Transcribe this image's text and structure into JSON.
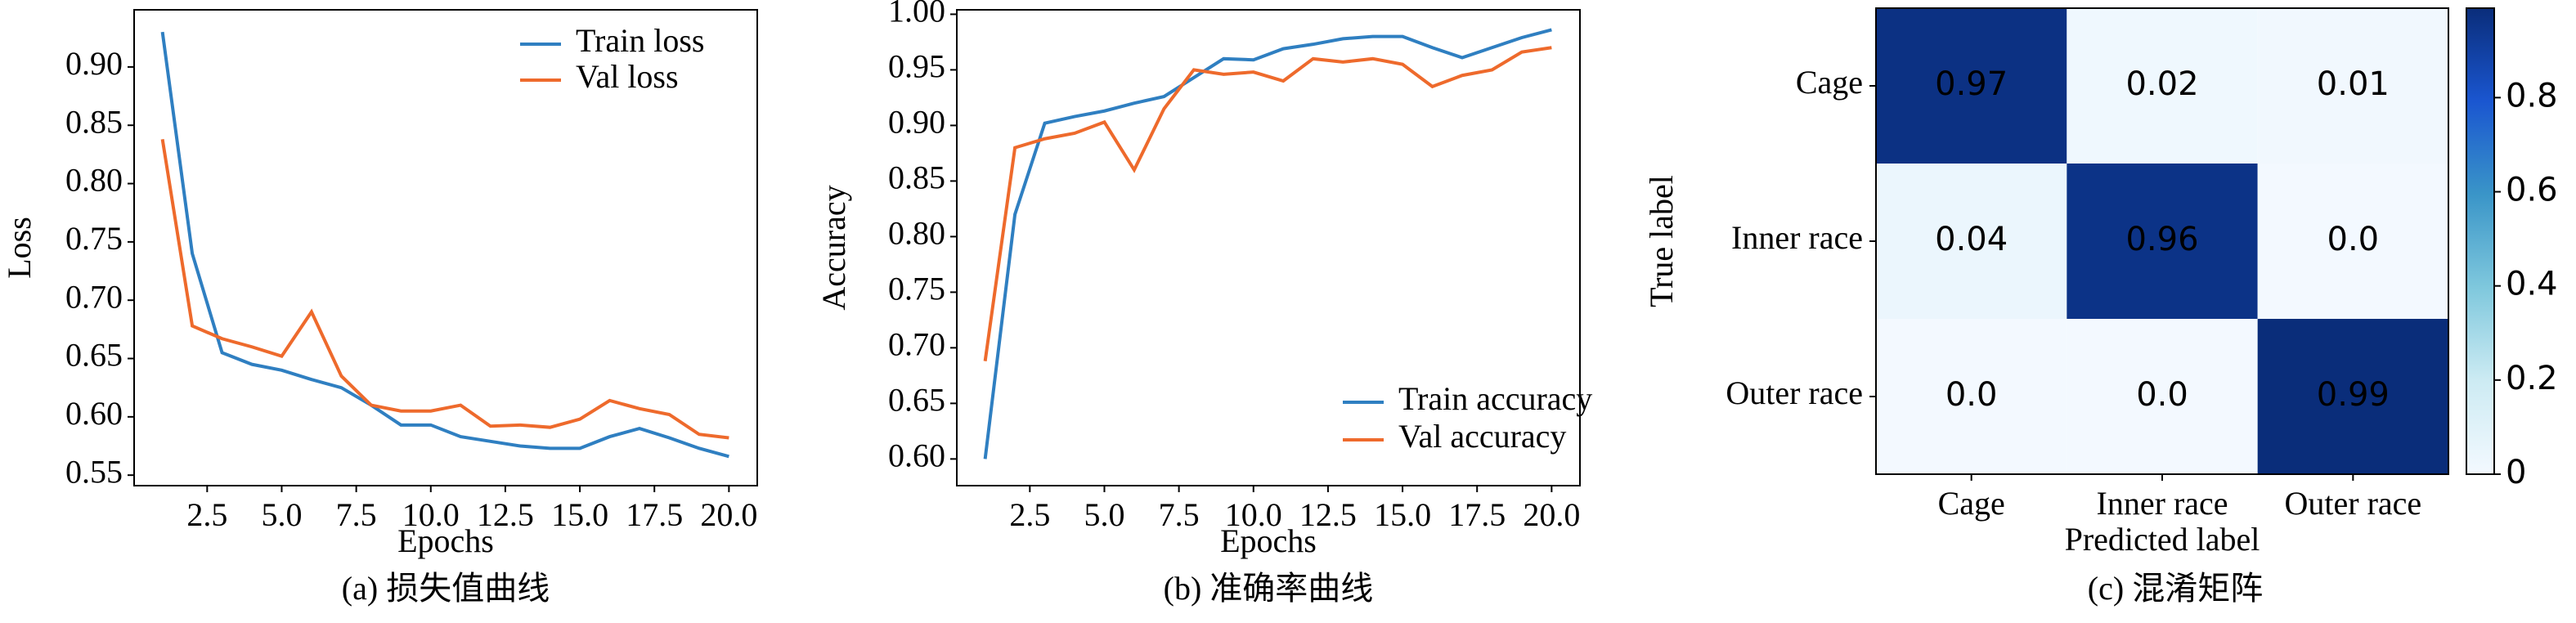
{
  "chart_data": [
    {
      "type": "line",
      "xlabel": "Epochs",
      "ylabel": "Loss",
      "caption": "(a) 损失值曲线",
      "x": [
        1,
        2,
        3,
        4,
        5,
        6,
        7,
        8,
        9,
        10,
        11,
        12,
        13,
        14,
        15,
        16,
        17,
        18,
        19,
        20
      ],
      "series": [
        {
          "name": "Train loss",
          "color": "#2f7fc1",
          "values": [
            0.93,
            0.74,
            0.655,
            0.645,
            0.64,
            0.632,
            0.625,
            0.61,
            0.593,
            0.593,
            0.583,
            0.579,
            0.575,
            0.573,
            0.573,
            0.583,
            0.59,
            0.582,
            0.573,
            0.566
          ]
        },
        {
          "name": "Val loss",
          "color": "#ee6a2c",
          "values": [
            0.838,
            0.678,
            0.667,
            0.66,
            0.652,
            0.69,
            0.635,
            0.61,
            0.605,
            0.605,
            0.61,
            0.592,
            0.593,
            0.591,
            0.598,
            0.614,
            0.607,
            0.602,
            0.585,
            0.582
          ]
        }
      ],
      "xlim": [
        0.05,
        20.95
      ],
      "xticks": [
        2.5,
        {
          "value": 5,
          "label": "5.0"
        },
        7.5,
        {
          "value": 10,
          "label": "10.0"
        },
        12.5,
        {
          "value": 15,
          "label": "15.0"
        },
        17.5,
        {
          "value": 20,
          "label": "20.0"
        }
      ],
      "ylim": [
        0.541,
        0.949
      ],
      "yticks": [
        0.55,
        {
          "value": 0.6,
          "label": "0.60"
        },
        0.65,
        {
          "value": 0.7,
          "label": "0.70"
        },
        0.75,
        {
          "value": 0.8,
          "label": "0.80"
        },
        0.85,
        {
          "value": 0.9,
          "label": "0.90"
        }
      ],
      "legend": "upper right"
    },
    {
      "type": "line",
      "xlabel": "Epochs",
      "ylabel": "Accuracy",
      "caption": "(b) 准确率曲线",
      "x": [
        1,
        2,
        3,
        4,
        5,
        6,
        7,
        8,
        9,
        10,
        11,
        12,
        13,
        14,
        15,
        16,
        17,
        18,
        19,
        20
      ],
      "series": [
        {
          "name": "Train accuracy",
          "color": "#2f7fc1",
          "values": [
            0.6,
            0.82,
            0.902,
            0.908,
            0.913,
            0.92,
            0.926,
            0.943,
            0.96,
            0.959,
            0.969,
            0.973,
            0.978,
            0.98,
            0.98,
            0.97,
            0.961,
            0.97,
            0.979,
            0.986
          ]
        },
        {
          "name": "Val accuracy",
          "color": "#ee6a2c",
          "values": [
            0.688,
            0.88,
            0.888,
            0.893,
            0.903,
            0.86,
            0.915,
            0.95,
            0.946,
            0.948,
            0.94,
            0.96,
            0.957,
            0.96,
            0.955,
            0.935,
            0.945,
            0.95,
            0.966,
            0.97
          ]
        }
      ],
      "xlim": [
        0.05,
        20.95
      ],
      "xticks": [
        2.5,
        {
          "value": 5,
          "label": "5.0"
        },
        7.5,
        {
          "value": 10,
          "label": "10.0"
        },
        12.5,
        {
          "value": 15,
          "label": "15.0"
        },
        17.5,
        {
          "value": 20,
          "label": "20.0"
        }
      ],
      "ylim": [
        0.576,
        1.004
      ],
      "yticks": [
        {
          "value": 0.6,
          "label": "0.60"
        },
        0.65,
        {
          "value": 0.7,
          "label": "0.70"
        },
        0.75,
        {
          "value": 0.8,
          "label": "0.80"
        },
        0.85,
        {
          "value": 0.9,
          "label": "0.90"
        },
        0.95,
        {
          "value": 1,
          "label": "1.00"
        }
      ],
      "legend": "lower right"
    },
    {
      "type": "heatmap",
      "xlabel": "Predicted label",
      "ylabel": "True label",
      "caption": "(c) 混淆矩阵",
      "xcategories": [
        "Cage",
        "Inner race",
        "Outer race"
      ],
      "ycategories": [
        "Cage",
        "Inner race",
        "Outer race"
      ],
      "values": [
        [
          0.97,
          0.02,
          0.01
        ],
        [
          0.04,
          0.96,
          0
        ],
        [
          0,
          0,
          0.99
        ]
      ],
      "value_labels": [
        [
          "0.97",
          "0.02",
          "0.01"
        ],
        [
          "0.04",
          "0.96",
          "0.0"
        ],
        [
          "0.0",
          "0.0",
          "0.99"
        ]
      ],
      "colormap": [
        "#f3f9ff",
        "#cdebf3",
        "#7fc8dd",
        "#3a95c8",
        "#1a56d0",
        "#0a2d7a"
      ],
      "clim": [
        0,
        0.99
      ],
      "cticks": [
        0,
        0.2,
        0.4,
        0.6,
        0.8
      ]
    }
  ]
}
